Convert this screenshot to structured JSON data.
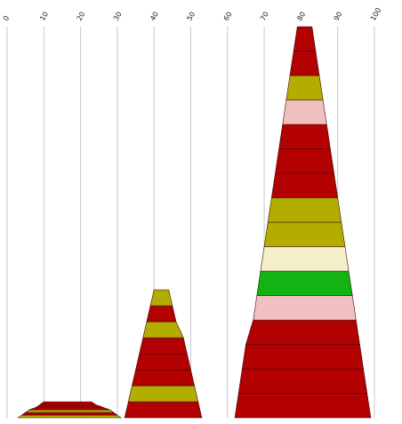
{
  "chart_data": {
    "type": "bar",
    "orientation": "stacked-pyramid",
    "x_axis_position": "top",
    "grid": true,
    "xlim": [
      0,
      100
    ],
    "ticks": [
      "0",
      "10",
      "20",
      "30",
      "40",
      "50",
      "60",
      "70",
      "80",
      "90",
      "100"
    ],
    "colors": {
      "dark_red": "#b30000",
      "olive": "#b3ad00",
      "pink": "#f0c0c0",
      "green": "#12b312",
      "cream": "#f3efc8",
      "grid": "#c8c8c8"
    },
    "pyramids": [
      {
        "segments": [
          {
            "left": 3,
            "right": 31,
            "color": "olive"
          },
          {
            "left": 4,
            "right": 30,
            "color": "dark_red"
          },
          {
            "left": 5,
            "right": 29,
            "color": "olive"
          },
          {
            "left": 6,
            "right": 28,
            "color": "dark_red"
          },
          {
            "left": 8,
            "right": 26,
            "color": "dark_red"
          },
          {
            "left": 9,
            "right": 24,
            "color": "dark_red"
          }
        ]
      },
      {
        "segments": [
          {
            "left": 32,
            "right": 53,
            "color": "dark_red"
          },
          {
            "left": 33,
            "right": 52,
            "color": "olive"
          },
          {
            "left": 34,
            "right": 51,
            "color": "dark_red"
          },
          {
            "left": 35,
            "right": 50,
            "color": "dark_red"
          },
          {
            "left": 36,
            "right": 49,
            "color": "dark_red"
          },
          {
            "left": 37,
            "right": 48,
            "color": "olive"
          },
          {
            "left": 38,
            "right": 46,
            "color": "dark_red"
          },
          {
            "left": 39,
            "right": 45,
            "color": "olive"
          }
        ]
      },
      {
        "segments": [
          {
            "left": 62,
            "right": 99,
            "color": "dark_red"
          },
          {
            "left": 63,
            "right": 98,
            "color": "dark_red"
          },
          {
            "left": 64,
            "right": 97,
            "color": "dark_red"
          },
          {
            "left": 65,
            "right": 96,
            "color": "dark_red"
          },
          {
            "left": 67,
            "right": 95,
            "color": "pink"
          },
          {
            "left": 68,
            "right": 94,
            "color": "green"
          },
          {
            "left": 69,
            "right": 93,
            "color": "cream"
          },
          {
            "left": 70,
            "right": 92,
            "color": "olive"
          },
          {
            "left": 71,
            "right": 91,
            "color": "olive"
          },
          {
            "left": 72,
            "right": 90,
            "color": "dark_red"
          },
          {
            "left": 73,
            "right": 89,
            "color": "dark_red"
          },
          {
            "left": 74,
            "right": 88,
            "color": "dark_red"
          },
          {
            "left": 75,
            "right": 87,
            "color": "pink"
          },
          {
            "left": 76,
            "right": 86,
            "color": "olive"
          },
          {
            "left": 77,
            "right": 85,
            "color": "dark_red"
          },
          {
            "left": 78,
            "right": 84,
            "color": "dark_red"
          }
        ]
      }
    ]
  }
}
